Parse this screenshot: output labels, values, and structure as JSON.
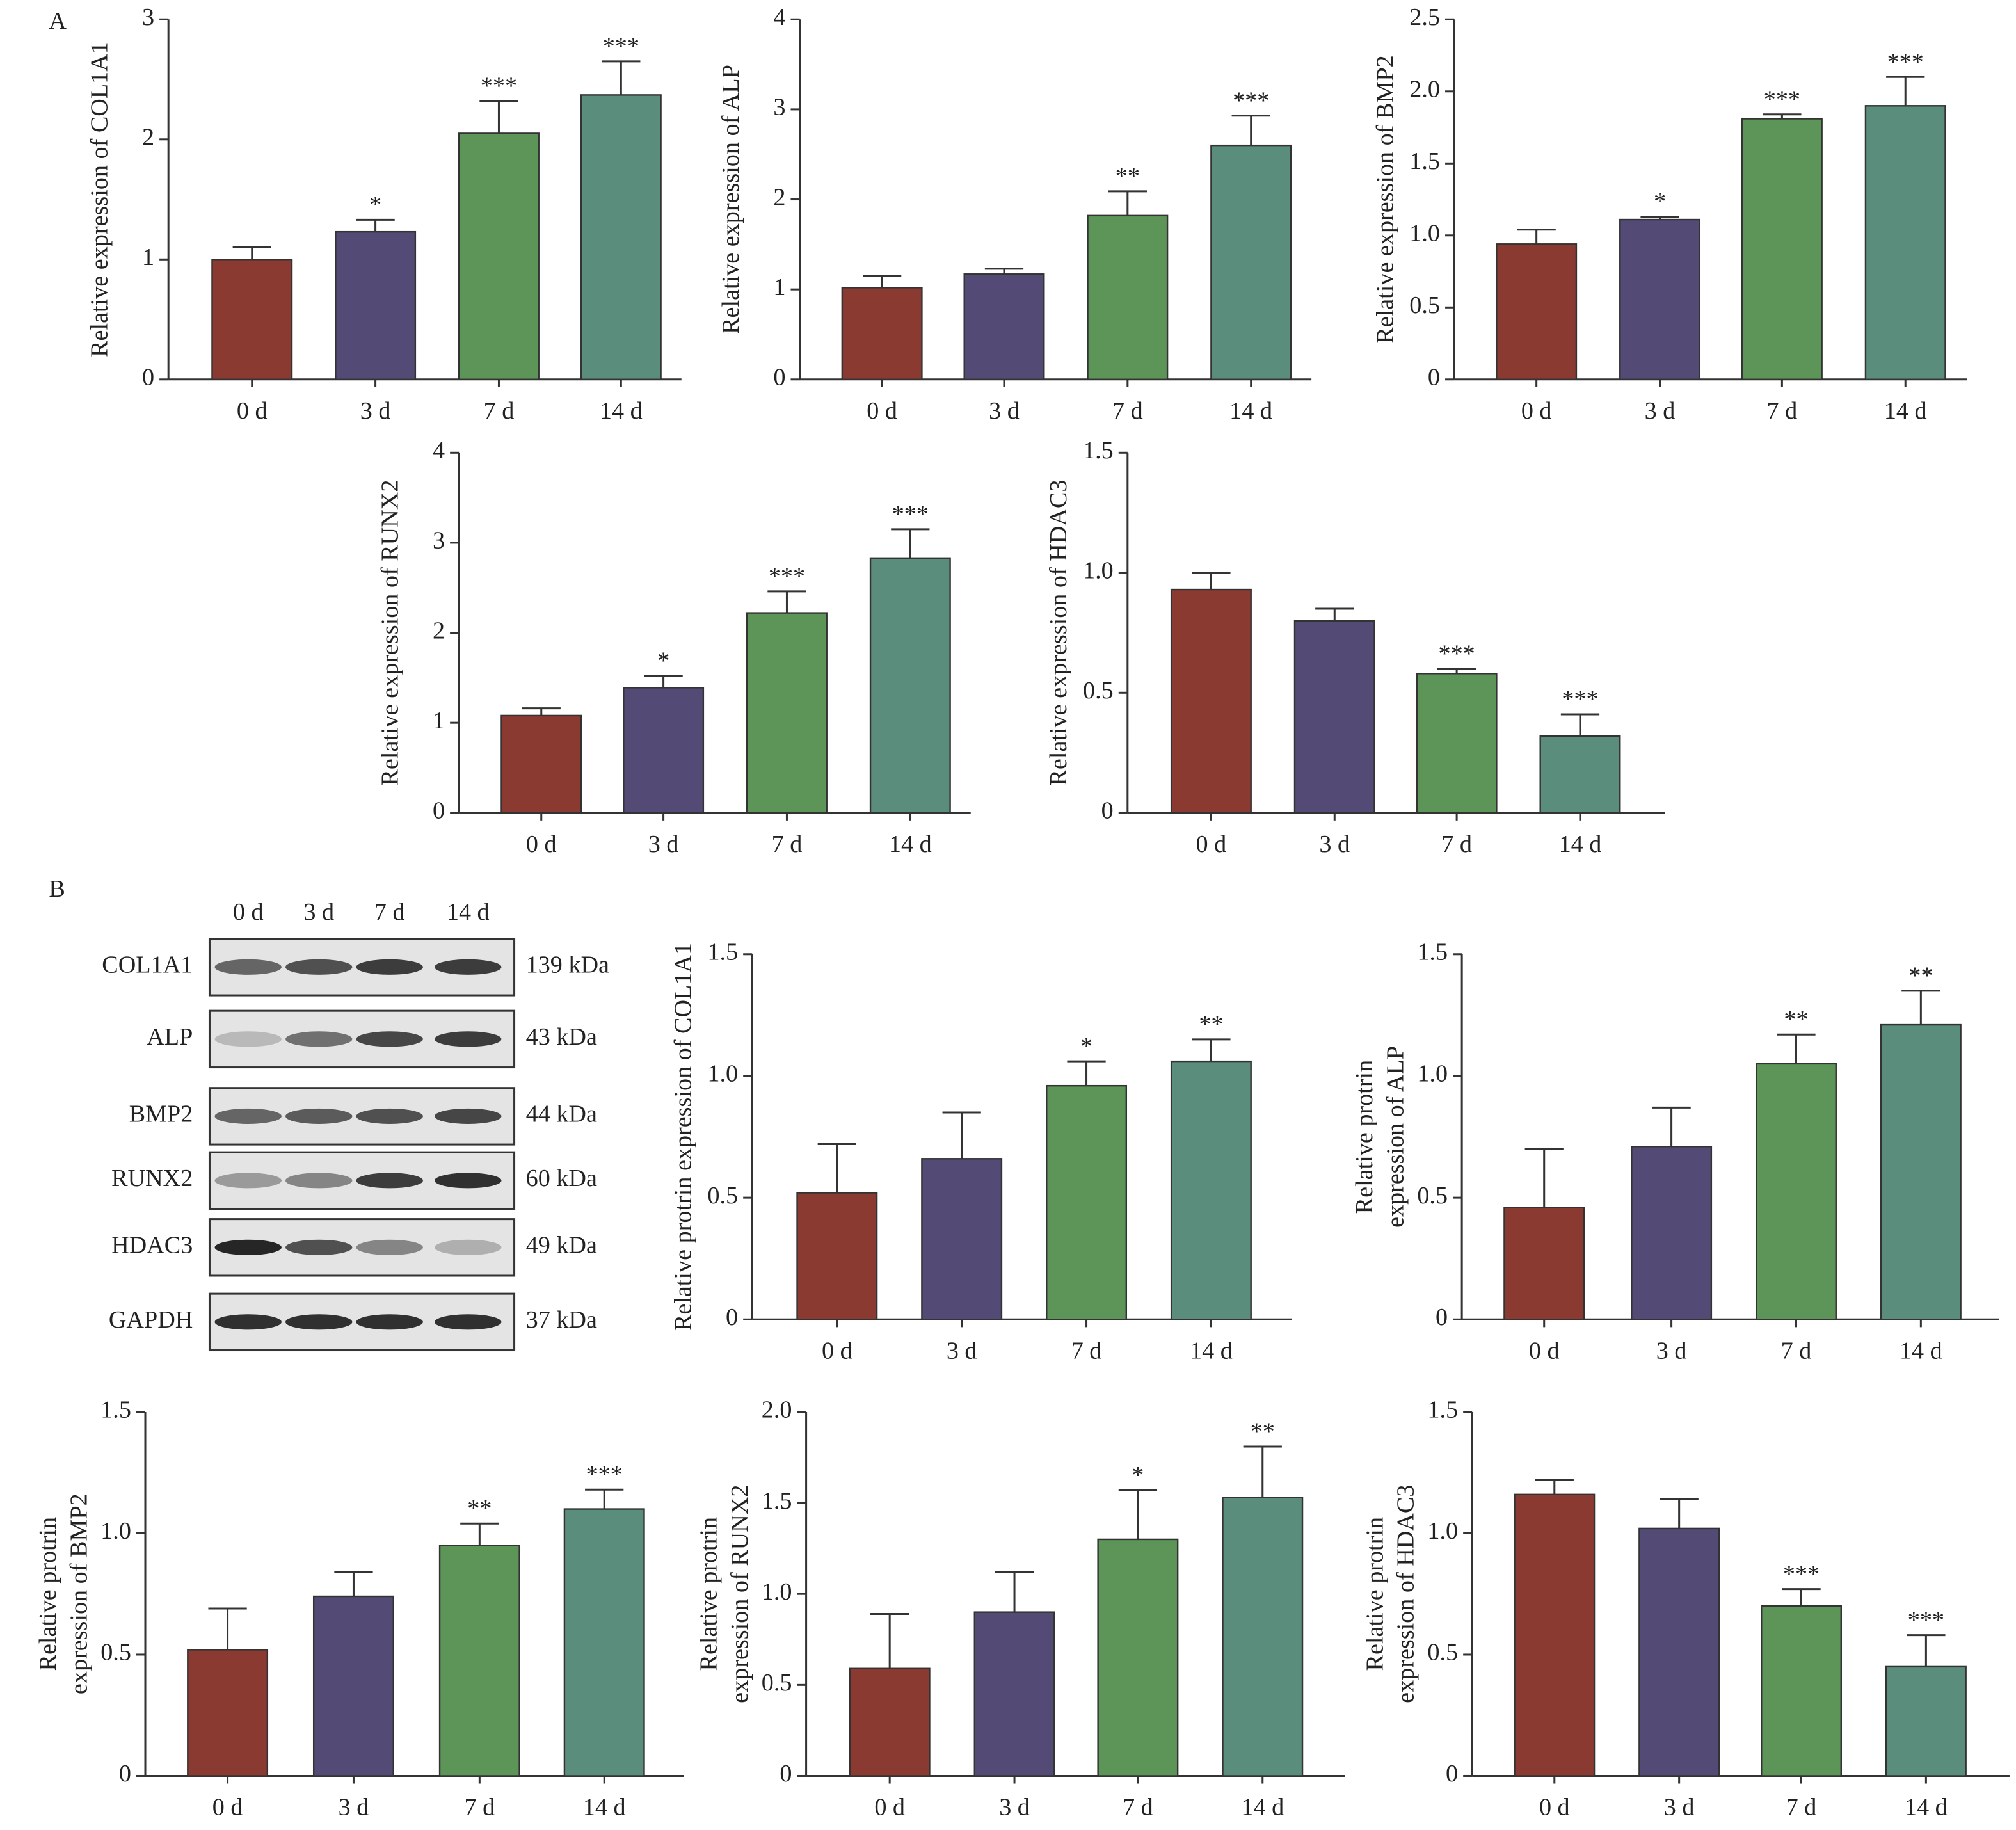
{
  "panel_labels": [
    "A",
    "B"
  ],
  "western_blot": {
    "lanes": [
      "0 d",
      "3 d",
      "7 d",
      "14 d"
    ],
    "proteins": [
      "COL1A1",
      "ALP",
      "BMP2",
      "RUNX2",
      "HDAC3",
      "GAPDH"
    ],
    "sizes": [
      "139 kDa",
      "43 kDa",
      "44 kDa",
      "60 kDa",
      "49 kDa",
      "37 kDa"
    ]
  },
  "chart_data": [
    {
      "type": "bar",
      "y_label": [
        "Relative expression of COL1A1"
      ],
      "categories": [
        "0 d",
        "3 d",
        "7 d",
        "14 d"
      ],
      "values": [
        1.0,
        1.23,
        2.05,
        2.37
      ],
      "errors": [
        0.1,
        0.1,
        0.27,
        0.28
      ],
      "annotations": [
        null,
        "*",
        "***",
        "***"
      ],
      "colors": [
        "#8b3a32",
        "#544a76",
        "#5d9458",
        "#5b8d7c"
      ],
      "ylim": [
        0,
        3
      ],
      "yticks": [
        0,
        1,
        2,
        3
      ]
    },
    {
      "type": "bar",
      "y_label": [
        "Relative expression of ALP"
      ],
      "categories": [
        "0 d",
        "3 d",
        "7 d",
        "14 d"
      ],
      "values": [
        1.02,
        1.17,
        1.82,
        2.6
      ],
      "errors": [
        0.13,
        0.06,
        0.27,
        0.33
      ],
      "annotations": [
        null,
        null,
        "**",
        "***"
      ],
      "colors": [
        "#8b3a32",
        "#544a76",
        "#5d9458",
        "#5b8d7c"
      ],
      "ylim": [
        0,
        4
      ],
      "yticks": [
        0,
        1,
        2,
        3,
        4
      ]
    },
    {
      "type": "bar",
      "y_label": [
        "Relative expression of BMP2"
      ],
      "categories": [
        "0 d",
        "3 d",
        "7 d",
        "14 d"
      ],
      "values": [
        0.94,
        1.11,
        1.81,
        1.9
      ],
      "errors": [
        0.1,
        0.02,
        0.03,
        0.2
      ],
      "annotations": [
        null,
        "*",
        "***",
        "***"
      ],
      "colors": [
        "#8b3a32",
        "#544a76",
        "#5d9458",
        "#5b8d7c"
      ],
      "ylim": [
        0,
        2.5
      ],
      "yticks": [
        0,
        0.5,
        {
          "value": 1,
          "label": "1.0"
        },
        1.5,
        {
          "value": 2,
          "label": "2.0"
        },
        2.5
      ]
    },
    {
      "type": "bar",
      "y_label": [
        "Relative expression of RUNX2"
      ],
      "categories": [
        "0 d",
        "3 d",
        "7 d",
        "14 d"
      ],
      "values": [
        1.08,
        1.39,
        2.22,
        2.83
      ],
      "errors": [
        0.08,
        0.13,
        0.24,
        0.32
      ],
      "annotations": [
        null,
        "*",
        "***",
        "***"
      ],
      "colors": [
        "#8b3a32",
        "#544a76",
        "#5d9458",
        "#5b8d7c"
      ],
      "ylim": [
        0,
        4
      ],
      "yticks": [
        0,
        1,
        2,
        3,
        4
      ]
    },
    {
      "type": "bar",
      "y_label": [
        "Relative expression of HDAC3"
      ],
      "categories": [
        "0 d",
        "3 d",
        "7 d",
        "14 d"
      ],
      "values": [
        0.93,
        0.8,
        0.58,
        0.32
      ],
      "errors": [
        0.07,
        0.05,
        0.02,
        0.09
      ],
      "annotations": [
        null,
        null,
        "***",
        "***"
      ],
      "colors": [
        "#8b3a32",
        "#544a76",
        "#5d9458",
        "#5b8d7c"
      ],
      "ylim": [
        0,
        1.5
      ],
      "yticks": [
        0,
        0.5,
        {
          "value": 1,
          "label": "1.0"
        },
        1.5
      ]
    },
    {
      "type": "bar",
      "y_label": [
        "Relative protrin expression of COL1A1"
      ],
      "categories": [
        "0 d",
        "3 d",
        "7 d",
        "14 d"
      ],
      "values": [
        0.52,
        0.66,
        0.96,
        1.06
      ],
      "errors": [
        0.2,
        0.19,
        0.1,
        0.09
      ],
      "annotations": [
        null,
        null,
        "*",
        "**"
      ],
      "colors": [
        "#8b3a32",
        "#544a76",
        "#5d9458",
        "#5b8d7c"
      ],
      "ylim": [
        0,
        1.5
      ],
      "yticks": [
        0,
        0.5,
        {
          "value": 1,
          "label": "1.0"
        },
        1.5
      ]
    },
    {
      "type": "bar",
      "y_label": [
        "Relative protrin",
        "expression of ALP"
      ],
      "categories": [
        "0 d",
        "3 d",
        "7 d",
        "14 d"
      ],
      "values": [
        0.46,
        0.71,
        1.05,
        1.21
      ],
      "errors": [
        0.24,
        0.16,
        0.12,
        0.14
      ],
      "annotations": [
        null,
        null,
        "**",
        "**"
      ],
      "colors": [
        "#8b3a32",
        "#544a76",
        "#5d9458",
        "#5b8d7c"
      ],
      "ylim": [
        0,
        1.5
      ],
      "yticks": [
        0,
        0.5,
        {
          "value": 1,
          "label": "1.0"
        },
        1.5
      ]
    },
    {
      "type": "bar",
      "y_label": [
        "Relative protrin",
        "expression of BMP2"
      ],
      "categories": [
        "0 d",
        "3 d",
        "7 d",
        "14 d"
      ],
      "values": [
        0.52,
        0.74,
        0.95,
        1.1
      ],
      "errors": [
        0.17,
        0.1,
        0.09,
        0.08
      ],
      "annotations": [
        null,
        null,
        "**",
        "***"
      ],
      "colors": [
        "#8b3a32",
        "#544a76",
        "#5d9458",
        "#5b8d7c"
      ],
      "ylim": [
        0,
        1.5
      ],
      "yticks": [
        0,
        0.5,
        {
          "value": 1,
          "label": "1.0"
        },
        1.5
      ]
    },
    {
      "type": "bar",
      "y_label": [
        "Relative protrin",
        "expression of RUNX2"
      ],
      "categories": [
        "0 d",
        "3 d",
        "7 d",
        "14 d"
      ],
      "values": [
        0.59,
        0.9,
        1.3,
        1.53
      ],
      "errors": [
        0.3,
        0.22,
        0.27,
        0.28
      ],
      "annotations": [
        null,
        null,
        "*",
        "**"
      ],
      "colors": [
        "#8b3a32",
        "#544a76",
        "#5d9458",
        "#5b8d7c"
      ],
      "ylim": [
        0,
        2
      ],
      "yticks": [
        0,
        0.5,
        {
          "value": 1,
          "label": "1.0"
        },
        1.5,
        {
          "value": 2,
          "label": "2.0"
        }
      ]
    },
    {
      "type": "bar",
      "y_label": [
        "Relative protrin",
        "expression of HDAC3"
      ],
      "categories": [
        "0 d",
        "3 d",
        "7 d",
        "14 d"
      ],
      "values": [
        1.16,
        1.02,
        0.7,
        0.45
      ],
      "errors": [
        0.06,
        0.12,
        0.07,
        0.13
      ],
      "annotations": [
        null,
        null,
        "***",
        "***"
      ],
      "colors": [
        "#8b3a32",
        "#544a76",
        "#5d9458",
        "#5b8d7c"
      ],
      "ylim": [
        0,
        1.5
      ],
      "yticks": [
        0,
        0.5,
        {
          "value": 1,
          "label": "1.0"
        },
        1.5
      ]
    }
  ]
}
